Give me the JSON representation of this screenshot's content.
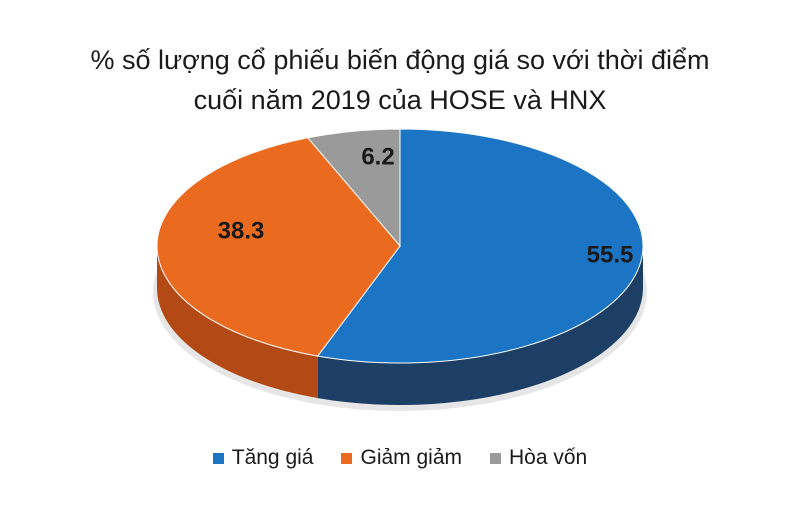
{
  "chart_data": {
    "type": "pie",
    "title_lines": [
      "% số lượng cổ phiếu biến động giá so với thời điểm",
      "cuối năm 2019 của  HOSE và HNX"
    ],
    "slices": [
      {
        "label": "Tăng giá",
        "value": 55.5,
        "display": "55.5",
        "color": "#1b75c4",
        "side_color": "#1d3f66"
      },
      {
        "label": "Hòa vốn",
        "value": 6.2,
        "display": "6.2",
        "color": "#9a9a9a",
        "side_color": "#5c5c5c"
      },
      {
        "label": "Giảm giảm",
        "value": 38.3,
        "display": "38.3",
        "color": "#ea6a20",
        "side_color": "#b34a16"
      }
    ],
    "legend": [
      {
        "label": "Tăng giá",
        "color": "#1b75c4"
      },
      {
        "label": "Giảm giảm",
        "color": "#ea6a20"
      },
      {
        "label": "Hòa vốn",
        "color": "#9a9a9a"
      }
    ],
    "legend_position": "bottom",
    "style": "3d"
  }
}
